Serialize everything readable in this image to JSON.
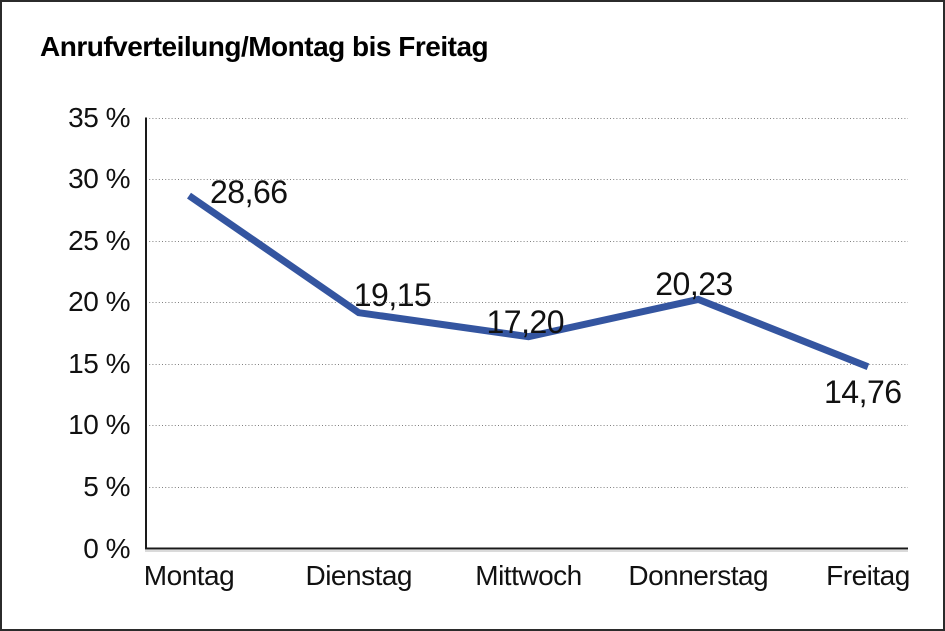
{
  "chart_data": {
    "type": "line",
    "title": "Anrufverteilung/Montag bis Freitag",
    "categories": [
      "Montag",
      "Dienstag",
      "Mittwoch",
      "Donnerstag",
      "Freitag"
    ],
    "values": [
      28.66,
      19.15,
      17.2,
      20.23,
      14.76
    ],
    "data_labels": [
      "28,66",
      "19,15",
      "17,20",
      "20,23",
      "14,76"
    ],
    "xlabel": "",
    "ylabel": "",
    "ylim": [
      0,
      35
    ],
    "ytick_step": 5,
    "ytick_labels": [
      "0 %",
      "5 %",
      "10 %",
      "15 %",
      "20 %",
      "25 %",
      "30 %",
      "35 %"
    ],
    "grid": "horizontal-dotted",
    "legend": "none",
    "line_color": "#3455a0",
    "gridline_color": "#808080",
    "axis_color": "#1a1a1a",
    "text_color": "#111111",
    "background_color": "#ffffff"
  }
}
